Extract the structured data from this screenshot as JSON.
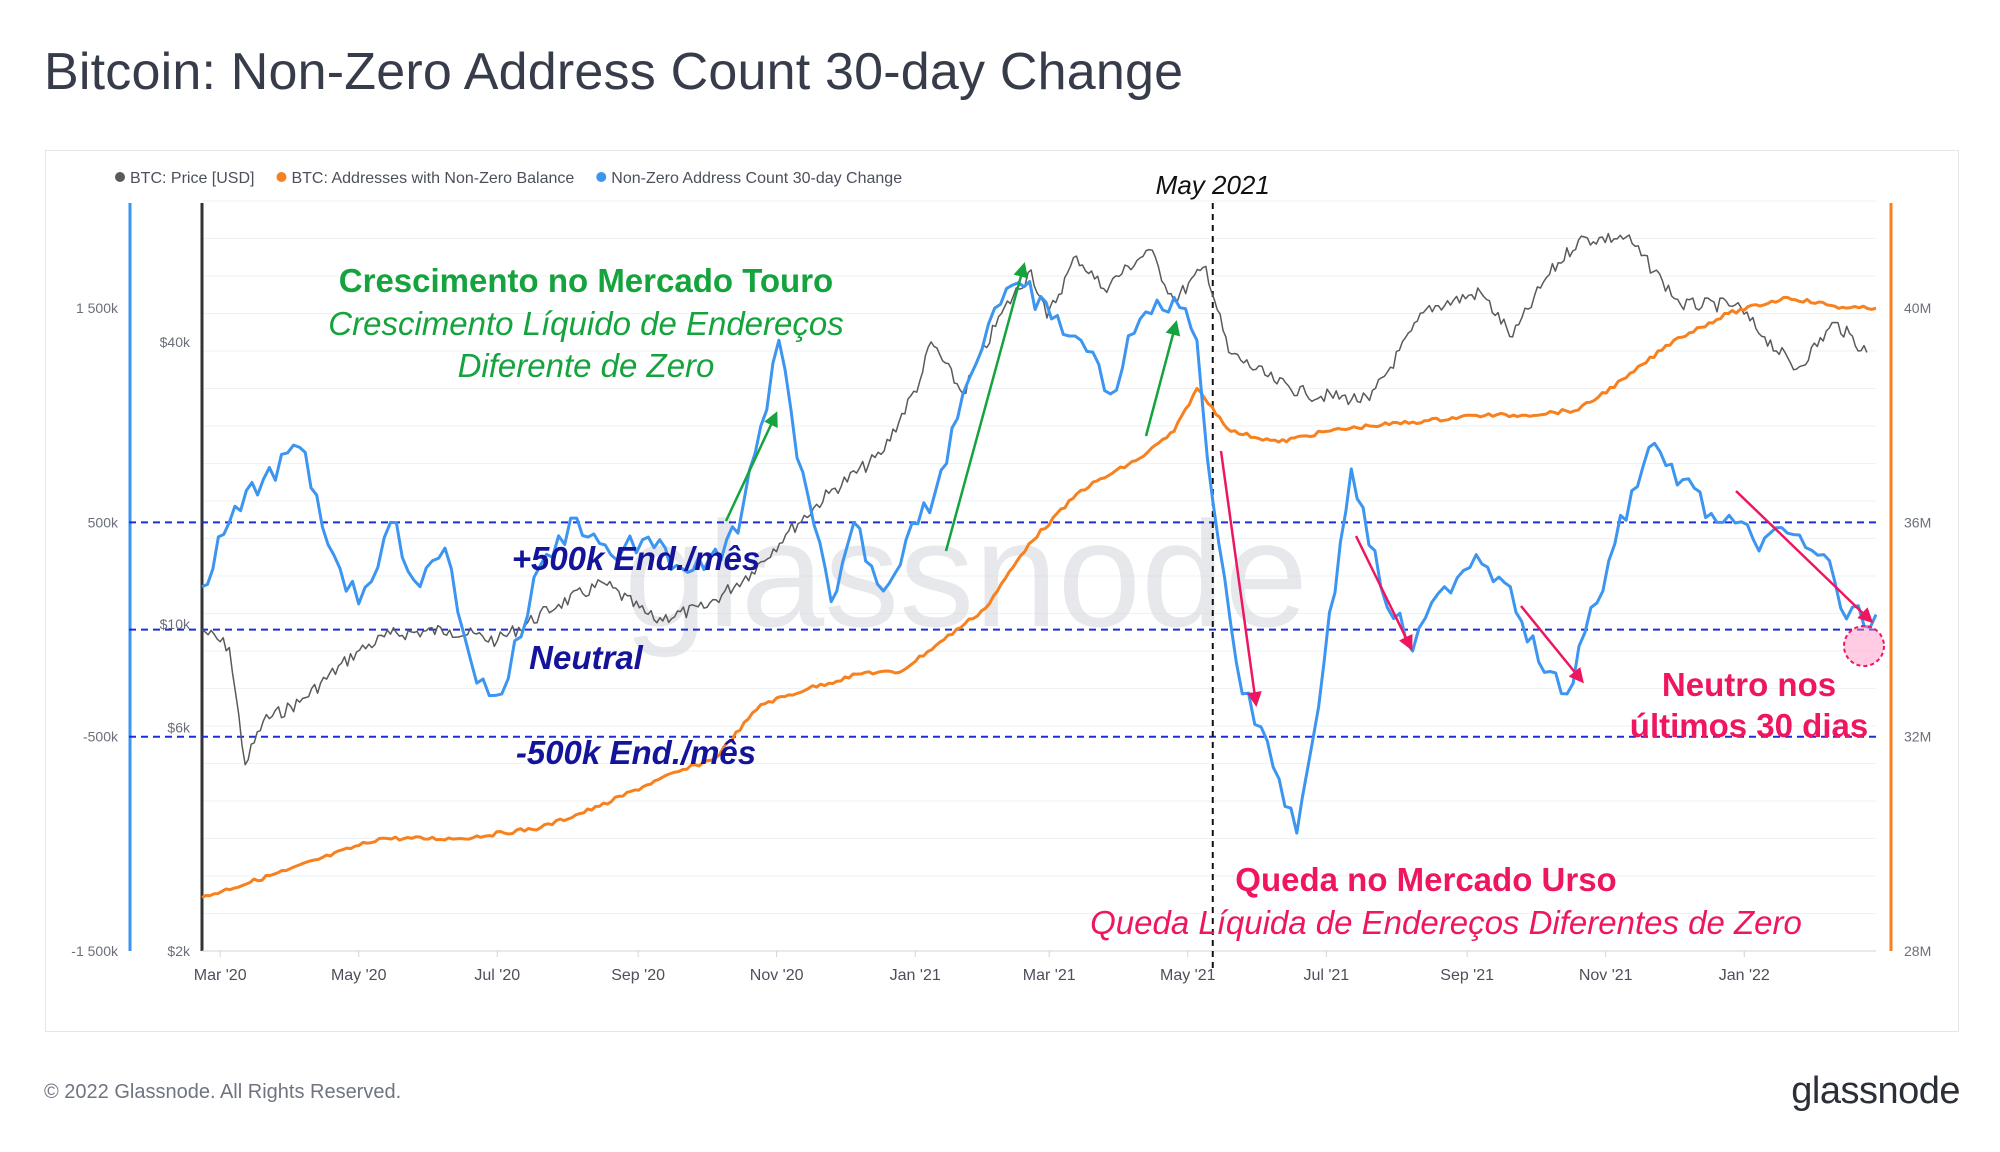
{
  "title": "Bitcoin: Non-Zero Address Count 30-day Change",
  "footer": {
    "copyright": "© 2022 Glassnode. All Rights Reserved.",
    "logo": "glassnode"
  },
  "watermark": "glassnode",
  "colors": {
    "price": "#5a5a5a",
    "balance": "#f7801f",
    "change": "#3c95f0",
    "reference": "#1c2fd6",
    "bull": "#14a33d",
    "bear": "#ee1660",
    "neutral_text": "#13149a"
  },
  "chart_data": {
    "type": "line",
    "legend": [
      {
        "name": "BTC: Price [USD]",
        "color": "#5a5a5a"
      },
      {
        "name": "BTC: Addresses with Non-Zero Balance",
        "color": "#f7801f"
      },
      {
        "name": "Non-Zero Address Count 30-day Change",
        "color": "#3c95f0"
      }
    ],
    "legend_position": "top-left",
    "x_ticks": [
      "Mar '20",
      "May '20",
      "Jul '20",
      "Sep '20",
      "Nov '20",
      "Jan '21",
      "Mar '21",
      "May '21",
      "Jul '21",
      "Sep '21",
      "Nov '21",
      "Jan '22"
    ],
    "x_range": [
      "2020-02-22",
      "2022-02-28"
    ],
    "y_axes": {
      "change": {
        "ticks": [
          "1 500k",
          "500k",
          "-500k",
          "-1 500k"
        ],
        "range": [
          -1500000,
          2000000
        ],
        "color": "#3c95f0"
      },
      "price": {
        "ticks": [
          "$40k",
          "$10k",
          "$6k",
          "$2k"
        ],
        "scale": "log",
        "range": [
          2000,
          80000
        ]
      },
      "balance": {
        "ticks": [
          "40M",
          "36M",
          "32M",
          "28M"
        ],
        "range": [
          28000000,
          42000000
        ],
        "color": "#f7801f"
      }
    },
    "reference_lines": [
      {
        "value": 500000,
        "label": "+500k End./mês"
      },
      {
        "value": 0,
        "label": "Neutral"
      },
      {
        "value": -500000,
        "label": "-500k End./mês"
      }
    ],
    "event_line": {
      "date": "2021-05-12",
      "label": "May 2021"
    },
    "annotations": {
      "bull_title": "Crescimento no Mercado Touro",
      "bull_subtitle_1": "Crescimento Líquido de Endereços",
      "bull_subtitle_2": "Diferente de Zero",
      "bear_title": "Queda no Mercado Urso",
      "bear_subtitle": "Queda Líquida de Endereços Diferentes de Zero",
      "neutral_1": "Neutro nos",
      "neutral_2": "últimos 30 dias"
    },
    "series": [
      {
        "name": "BTC: Price [USD]",
        "axis": "price",
        "points": [
          [
            "2020-02-22",
            9700
          ],
          [
            "2020-03-05",
            8900
          ],
          [
            "2020-03-12",
            5000
          ],
          [
            "2020-03-20",
            6200
          ],
          [
            "2020-04-05",
            6800
          ],
          [
            "2020-04-30",
            8700
          ],
          [
            "2020-05-15",
            9500
          ],
          [
            "2020-06-10",
            9700
          ],
          [
            "2020-07-01",
            9200
          ],
          [
            "2020-07-28",
            11000
          ],
          [
            "2020-08-17",
            12200
          ],
          [
            "2020-09-08",
            10200
          ],
          [
            "2020-09-30",
            10800
          ],
          [
            "2020-10-21",
            12900
          ],
          [
            "2020-11-05",
            15500
          ],
          [
            "2020-11-24",
            19000
          ],
          [
            "2020-12-17",
            23000
          ],
          [
            "2021-01-03",
            33000
          ],
          [
            "2021-01-08",
            40000
          ],
          [
            "2021-01-22",
            31000
          ],
          [
            "2021-02-08",
            46000
          ],
          [
            "2021-02-21",
            57000
          ],
          [
            "2021-02-28",
            45000
          ],
          [
            "2021-03-13",
            61000
          ],
          [
            "2021-03-25",
            52000
          ],
          [
            "2021-04-14",
            63000
          ],
          [
            "2021-04-25",
            49000
          ],
          [
            "2021-05-09",
            58000
          ],
          [
            "2021-05-19",
            38000
          ],
          [
            "2021-06-08",
            33000
          ],
          [
            "2021-06-22",
            31000
          ],
          [
            "2021-07-20",
            30000
          ],
          [
            "2021-08-14",
            47000
          ],
          [
            "2021-09-07",
            51000
          ],
          [
            "2021-09-21",
            41000
          ],
          [
            "2021-10-06",
            55000
          ],
          [
            "2021-10-20",
            66000
          ],
          [
            "2021-11-10",
            67000
          ],
          [
            "2021-11-26",
            54000
          ],
          [
            "2021-12-04",
            48000
          ],
          [
            "2021-12-28",
            48000
          ],
          [
            "2022-01-10",
            41000
          ],
          [
            "2022-01-24",
            35000
          ],
          [
            "2022-02-10",
            44000
          ],
          [
            "2022-02-24",
            38000
          ]
        ]
      },
      {
        "name": "BTC: Addresses with Non-Zero Balance",
        "axis": "balance",
        "points": [
          [
            "2020-02-22",
            29000000
          ],
          [
            "2020-03-30",
            29500000
          ],
          [
            "2020-05-10",
            30100000
          ],
          [
            "2020-06-15",
            30100000
          ],
          [
            "2020-07-20",
            30300000
          ],
          [
            "2020-08-15",
            30700000
          ],
          [
            "2020-09-10",
            31200000
          ],
          [
            "2020-10-05",
            31600000
          ],
          [
            "2020-10-25",
            32600000
          ],
          [
            "2020-11-15",
            32900000
          ],
          [
            "2020-12-10",
            33200000
          ],
          [
            "2020-12-25",
            33200000
          ],
          [
            "2021-01-10",
            33700000
          ],
          [
            "2021-02-01",
            34400000
          ],
          [
            "2021-02-20",
            35600000
          ],
          [
            "2021-03-15",
            36600000
          ],
          [
            "2021-04-10",
            37200000
          ],
          [
            "2021-04-25",
            37700000
          ],
          [
            "2021-05-05",
            38500000
          ],
          [
            "2021-05-20",
            37700000
          ],
          [
            "2021-06-10",
            37500000
          ],
          [
            "2021-07-01",
            37700000
          ],
          [
            "2021-07-20",
            37800000
          ],
          [
            "2021-08-15",
            37900000
          ],
          [
            "2021-09-05",
            38000000
          ],
          [
            "2021-09-25",
            38000000
          ],
          [
            "2021-10-20",
            38100000
          ],
          [
            "2021-11-10",
            38700000
          ],
          [
            "2021-12-01",
            39400000
          ],
          [
            "2021-12-25",
            39900000
          ],
          [
            "2022-01-20",
            40200000
          ],
          [
            "2022-02-15",
            40000000
          ],
          [
            "2022-02-28",
            40000000
          ]
        ]
      },
      {
        "name": "Non-Zero Address Count 30-day Change",
        "axis": "change",
        "points": [
          [
            "2020-02-22",
            200000
          ],
          [
            "2020-03-05",
            500000
          ],
          [
            "2020-03-20",
            700000
          ],
          [
            "2020-04-05",
            850000
          ],
          [
            "2020-04-20",
            350000
          ],
          [
            "2020-05-01",
            120000
          ],
          [
            "2020-05-15",
            500000
          ],
          [
            "2020-05-28",
            200000
          ],
          [
            "2020-06-08",
            380000
          ],
          [
            "2020-06-22",
            -250000
          ],
          [
            "2020-07-03",
            -300000
          ],
          [
            "2020-07-20",
            300000
          ],
          [
            "2020-08-05",
            520000
          ],
          [
            "2020-08-20",
            350000
          ],
          [
            "2020-09-03",
            420000
          ],
          [
            "2020-09-18",
            300000
          ],
          [
            "2020-09-30",
            280000
          ],
          [
            "2020-10-15",
            450000
          ],
          [
            "2020-10-25",
            950000
          ],
          [
            "2020-11-02",
            1350000
          ],
          [
            "2020-11-10",
            800000
          ],
          [
            "2020-11-25",
            130000
          ],
          [
            "2020-12-05",
            500000
          ],
          [
            "2020-12-18",
            180000
          ],
          [
            "2020-12-28",
            420000
          ],
          [
            "2021-01-10",
            650000
          ],
          [
            "2021-01-22",
            1100000
          ],
          [
            "2021-02-05",
            1500000
          ],
          [
            "2021-02-18",
            1600000
          ],
          [
            "2021-03-02",
            1450000
          ],
          [
            "2021-03-15",
            1350000
          ],
          [
            "2021-03-28",
            1100000
          ],
          [
            "2021-04-10",
            1450000
          ],
          [
            "2021-04-25",
            1550000
          ],
          [
            "2021-05-05",
            1350000
          ],
          [
            "2021-05-12",
            600000
          ],
          [
            "2021-05-25",
            -300000
          ],
          [
            "2021-06-05",
            -520000
          ],
          [
            "2021-06-18",
            -950000
          ],
          [
            "2021-06-30",
            -150000
          ],
          [
            "2021-07-12",
            750000
          ],
          [
            "2021-07-25",
            200000
          ],
          [
            "2021-08-08",
            -100000
          ],
          [
            "2021-08-22",
            200000
          ],
          [
            "2021-09-05",
            350000
          ],
          [
            "2021-09-20",
            200000
          ],
          [
            "2021-10-05",
            -200000
          ],
          [
            "2021-10-15",
            -300000
          ],
          [
            "2021-11-05",
            400000
          ],
          [
            "2021-11-20",
            850000
          ],
          [
            "2021-12-05",
            700000
          ],
          [
            "2021-12-20",
            500000
          ],
          [
            "2022-01-05",
            420000
          ],
          [
            "2022-01-20",
            450000
          ],
          [
            "2022-02-05",
            350000
          ],
          [
            "2022-02-15",
            50000
          ],
          [
            "2022-02-28",
            70000
          ]
        ]
      }
    ]
  }
}
